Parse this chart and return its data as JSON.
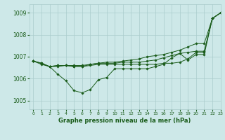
{
  "title": "Graphe pression niveau de la mer (hPa)",
  "bg_color": "#cde8e8",
  "grid_color": "#aacccc",
  "line_color": "#1a5c1a",
  "xlim": [
    -0.5,
    23
  ],
  "ylim": [
    1004.6,
    1009.4
  ],
  "yticks": [
    1005,
    1006,
    1007,
    1008,
    1009
  ],
  "xticks": [
    0,
    1,
    2,
    3,
    4,
    5,
    6,
    7,
    8,
    9,
    10,
    11,
    12,
    13,
    14,
    15,
    16,
    17,
    18,
    19,
    20,
    21,
    22,
    23
  ],
  "series": [
    {
      "x": [
        0,
        1,
        2,
        3,
        4,
        5,
        6,
        7,
        8,
        9,
        10,
        11,
        12,
        13,
        14,
        15,
        16,
        17,
        18,
        19,
        20,
        21,
        22,
        23
      ],
      "y": [
        1006.8,
        1006.7,
        1006.55,
        1006.6,
        1006.6,
        1006.55,
        1006.55,
        1006.65,
        1006.7,
        1006.75,
        1006.75,
        1006.8,
        1006.85,
        1006.9,
        1007.0,
        1007.05,
        1007.1,
        1007.2,
        1007.3,
        1007.45,
        1007.6,
        1007.6,
        1008.75,
        1009.0
      ]
    },
    {
      "x": [
        0,
        1,
        2,
        3,
        4,
        5,
        6,
        7,
        8,
        9,
        10,
        11,
        12,
        13,
        14,
        15,
        16,
        17,
        18,
        19,
        20,
        21,
        22,
        23
      ],
      "y": [
        1006.8,
        1006.7,
        1006.55,
        1006.6,
        1006.6,
        1006.6,
        1006.6,
        1006.65,
        1006.7,
        1006.7,
        1006.7,
        1006.75,
        1006.75,
        1006.75,
        1006.8,
        1006.85,
        1006.95,
        1007.05,
        1007.15,
        1007.2,
        1007.25,
        1007.25,
        1008.75,
        1009.0
      ]
    },
    {
      "x": [
        0,
        1,
        2,
        3,
        4,
        5,
        6,
        7,
        8,
        9,
        10,
        11,
        12,
        13,
        14,
        15,
        16,
        17,
        18,
        19,
        20,
        21,
        22,
        23
      ],
      "y": [
        1006.8,
        1006.7,
        1006.55,
        1006.55,
        1006.6,
        1006.55,
        1006.55,
        1006.6,
        1006.65,
        1006.65,
        1006.65,
        1006.65,
        1006.65,
        1006.65,
        1006.65,
        1006.65,
        1006.7,
        1006.7,
        1006.75,
        1006.9,
        1007.2,
        1007.2,
        1008.75,
        1009.0
      ]
    },
    {
      "x": [
        0,
        1,
        2,
        3,
        4,
        5,
        6,
        7,
        8,
        9,
        10,
        11,
        12,
        13,
        14,
        15,
        16,
        17,
        18,
        19,
        20,
        21,
        22,
        23
      ],
      "y": [
        1006.8,
        1006.65,
        1006.55,
        1006.2,
        1005.9,
        1005.45,
        1005.35,
        1005.5,
        1005.95,
        1006.05,
        1006.45,
        1006.45,
        1006.45,
        1006.45,
        1006.45,
        1006.55,
        1006.65,
        1006.95,
        1007.15,
        1006.85,
        1007.1,
        1007.1,
        1008.75,
        1009.0
      ]
    }
  ]
}
